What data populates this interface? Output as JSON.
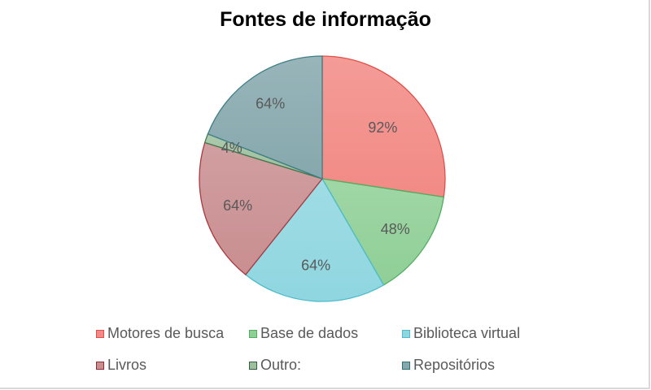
{
  "chart_data": {
    "type": "pie",
    "title": "Fontes de informação",
    "categories": [
      "Motores de busca",
      "Base de dados",
      "Biblioteca virtual",
      "Livros",
      "Outro:",
      "Repositórios"
    ],
    "values": [
      92,
      48,
      64,
      64,
      4,
      64
    ],
    "labels": [
      "92%",
      "48%",
      "64%",
      "64%",
      "4%",
      "64%"
    ],
    "colors": [
      "#f28a85",
      "#8fcf96",
      "#8fd6e0",
      "#c98e90",
      "#9dbf9d",
      "#86a8ad"
    ],
    "edge_colors": [
      "#e0504a",
      "#4fae60",
      "#4fbccb",
      "#a83a40",
      "#3f7a4f",
      "#3f7f86"
    ],
    "legend_position": "bottom",
    "start_angle": "top, clockwise"
  },
  "title": "Fontes de informação",
  "legend": [
    {
      "label": "Motores de busca",
      "color": "#f28a85",
      "edge": "#e0504a"
    },
    {
      "label": "Base de dados",
      "color": "#8fcf96",
      "edge": "#4fae60"
    },
    {
      "label": "Biblioteca virtual",
      "color": "#8fd6e0",
      "edge": "#4fbccb"
    },
    {
      "label": "Livros",
      "color": "#c98e90",
      "edge": "#8a2f35"
    },
    {
      "label": "Outro:",
      "color": "#9dbf9d",
      "edge": "#2f5f3f"
    },
    {
      "label": "Repositórios",
      "color": "#86a8ad",
      "edge": "#2f6f76"
    }
  ]
}
